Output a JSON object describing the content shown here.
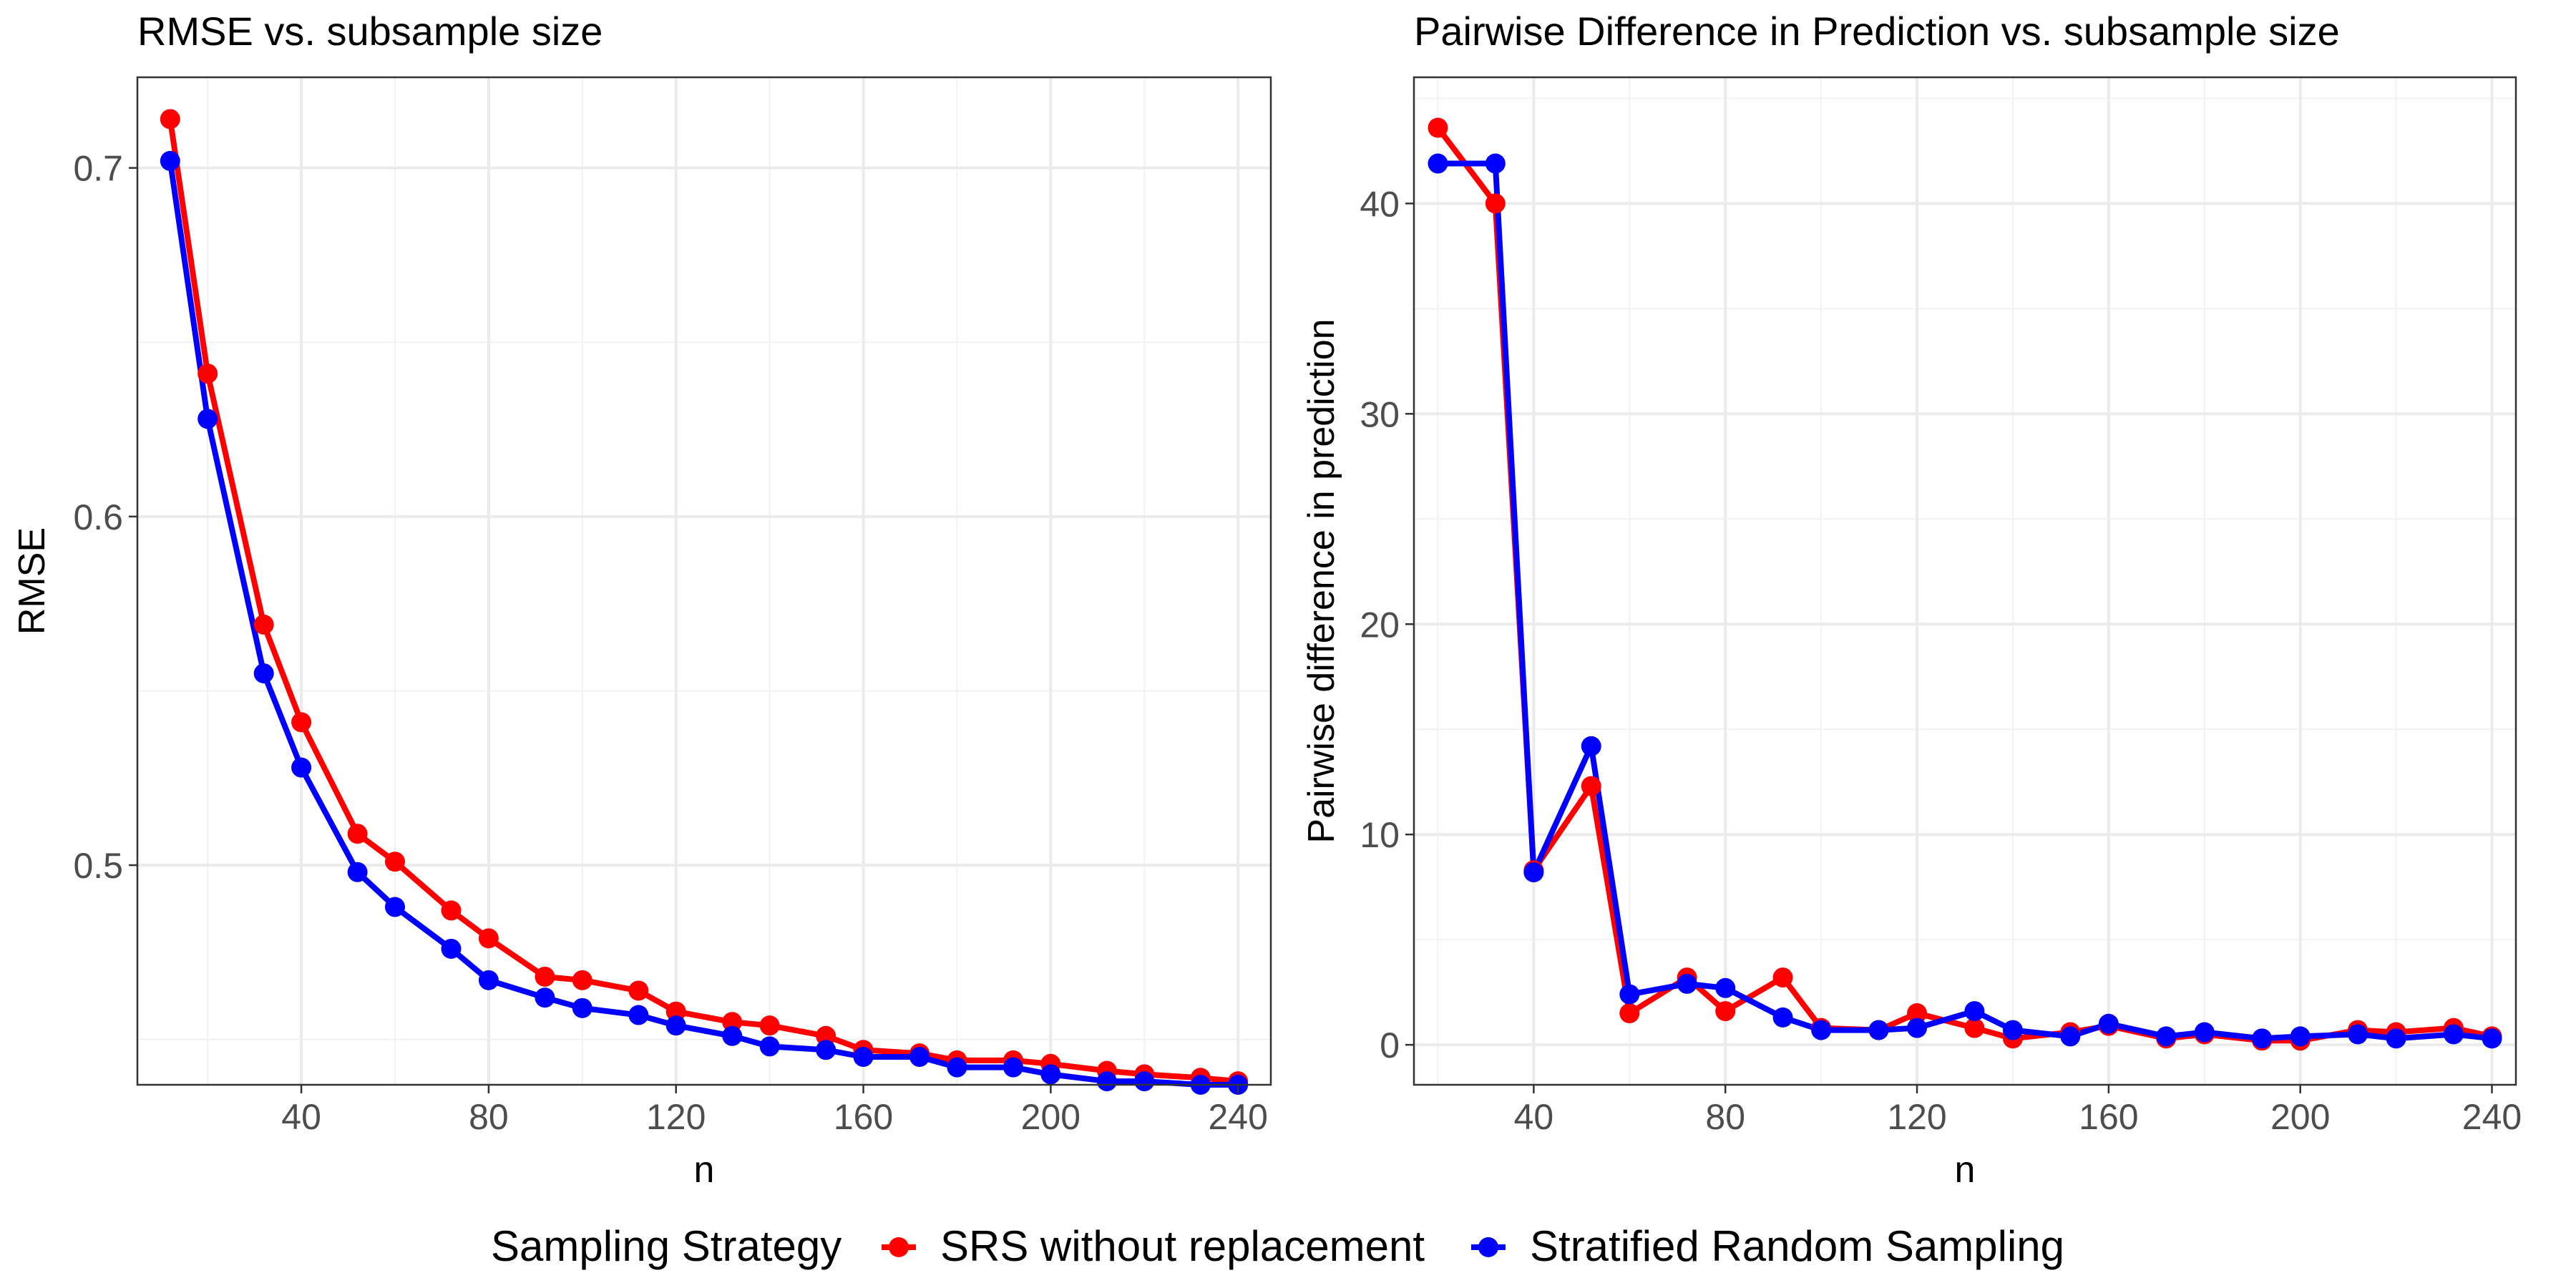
{
  "chart_data": [
    {
      "type": "line",
      "title": "RMSE vs. subsample size",
      "xlabel": "n",
      "ylabel": "RMSE",
      "xlim": [
        5,
        247
      ],
      "ylim": [
        0.437,
        0.726
      ],
      "xticks": [
        40,
        80,
        120,
        160,
        200,
        240
      ],
      "yticks": [
        0.5,
        0.6,
        0.7
      ],
      "x": [
        12,
        20,
        32,
        40,
        52,
        60,
        72,
        80,
        92,
        100,
        112,
        120,
        132,
        140,
        152,
        160,
        172,
        180,
        192,
        200,
        212,
        220,
        232,
        240
      ],
      "series": [
        {
          "name": "SRS without replacement",
          "color": "#FF0000",
          "values": [
            0.714,
            0.641,
            0.569,
            0.541,
            0.509,
            0.501,
            0.487,
            0.479,
            0.468,
            0.467,
            0.464,
            0.458,
            0.455,
            0.454,
            0.451,
            0.447,
            0.446,
            0.444,
            0.444,
            0.443,
            0.441,
            0.44,
            0.439,
            0.438
          ]
        },
        {
          "name": "Stratified Random Sampling",
          "color": "#0000FF",
          "values": [
            0.702,
            0.628,
            0.555,
            0.528,
            0.498,
            0.488,
            0.476,
            0.467,
            0.462,
            0.459,
            0.457,
            0.454,
            0.451,
            0.448,
            0.447,
            0.445,
            0.445,
            0.442,
            0.442,
            0.44,
            0.438,
            0.438,
            0.437,
            0.437
          ]
        }
      ]
    },
    {
      "type": "line",
      "title": "Pairwise Difference in Prediction vs. subsample size",
      "xlabel": "n",
      "ylabel": "Pairwise difference in prediction",
      "xlim": [
        15,
        245
      ],
      "ylim": [
        -1.9,
        46
      ],
      "xticks": [
        40,
        80,
        120,
        160,
        200,
        240
      ],
      "yticks": [
        0,
        10,
        20,
        30,
        40
      ],
      "x": [
        20,
        32,
        40,
        52,
        60,
        72,
        80,
        92,
        100,
        112,
        120,
        132,
        140,
        152,
        160,
        172,
        180,
        192,
        200,
        212,
        220,
        232,
        240
      ],
      "series": [
        {
          "name": "SRS without replacement",
          "color": "#FF0000",
          "values": [
            43.6,
            40.0,
            8.3,
            12.3,
            1.5,
            3.2,
            1.6,
            3.2,
            0.8,
            0.7,
            1.5,
            0.8,
            0.3,
            0.6,
            0.9,
            0.3,
            0.5,
            0.2,
            0.2,
            0.7,
            0.6,
            0.8,
            0.4
          ]
        },
        {
          "name": "Stratified Random Sampling",
          "color": "#0000FF",
          "values": [
            41.9,
            41.9,
            8.2,
            14.2,
            2.4,
            2.9,
            2.7,
            1.3,
            0.7,
            0.7,
            0.8,
            1.6,
            0.7,
            0.4,
            1.0,
            0.4,
            0.6,
            0.3,
            0.4,
            0.5,
            0.3,
            0.5,
            0.3
          ]
        }
      ]
    }
  ],
  "legend": {
    "title": "Sampling Strategy",
    "items": [
      {
        "label": "SRS without replacement",
        "color": "#FF0000"
      },
      {
        "label": "Stratified Random Sampling",
        "color": "#0000FF"
      }
    ]
  }
}
